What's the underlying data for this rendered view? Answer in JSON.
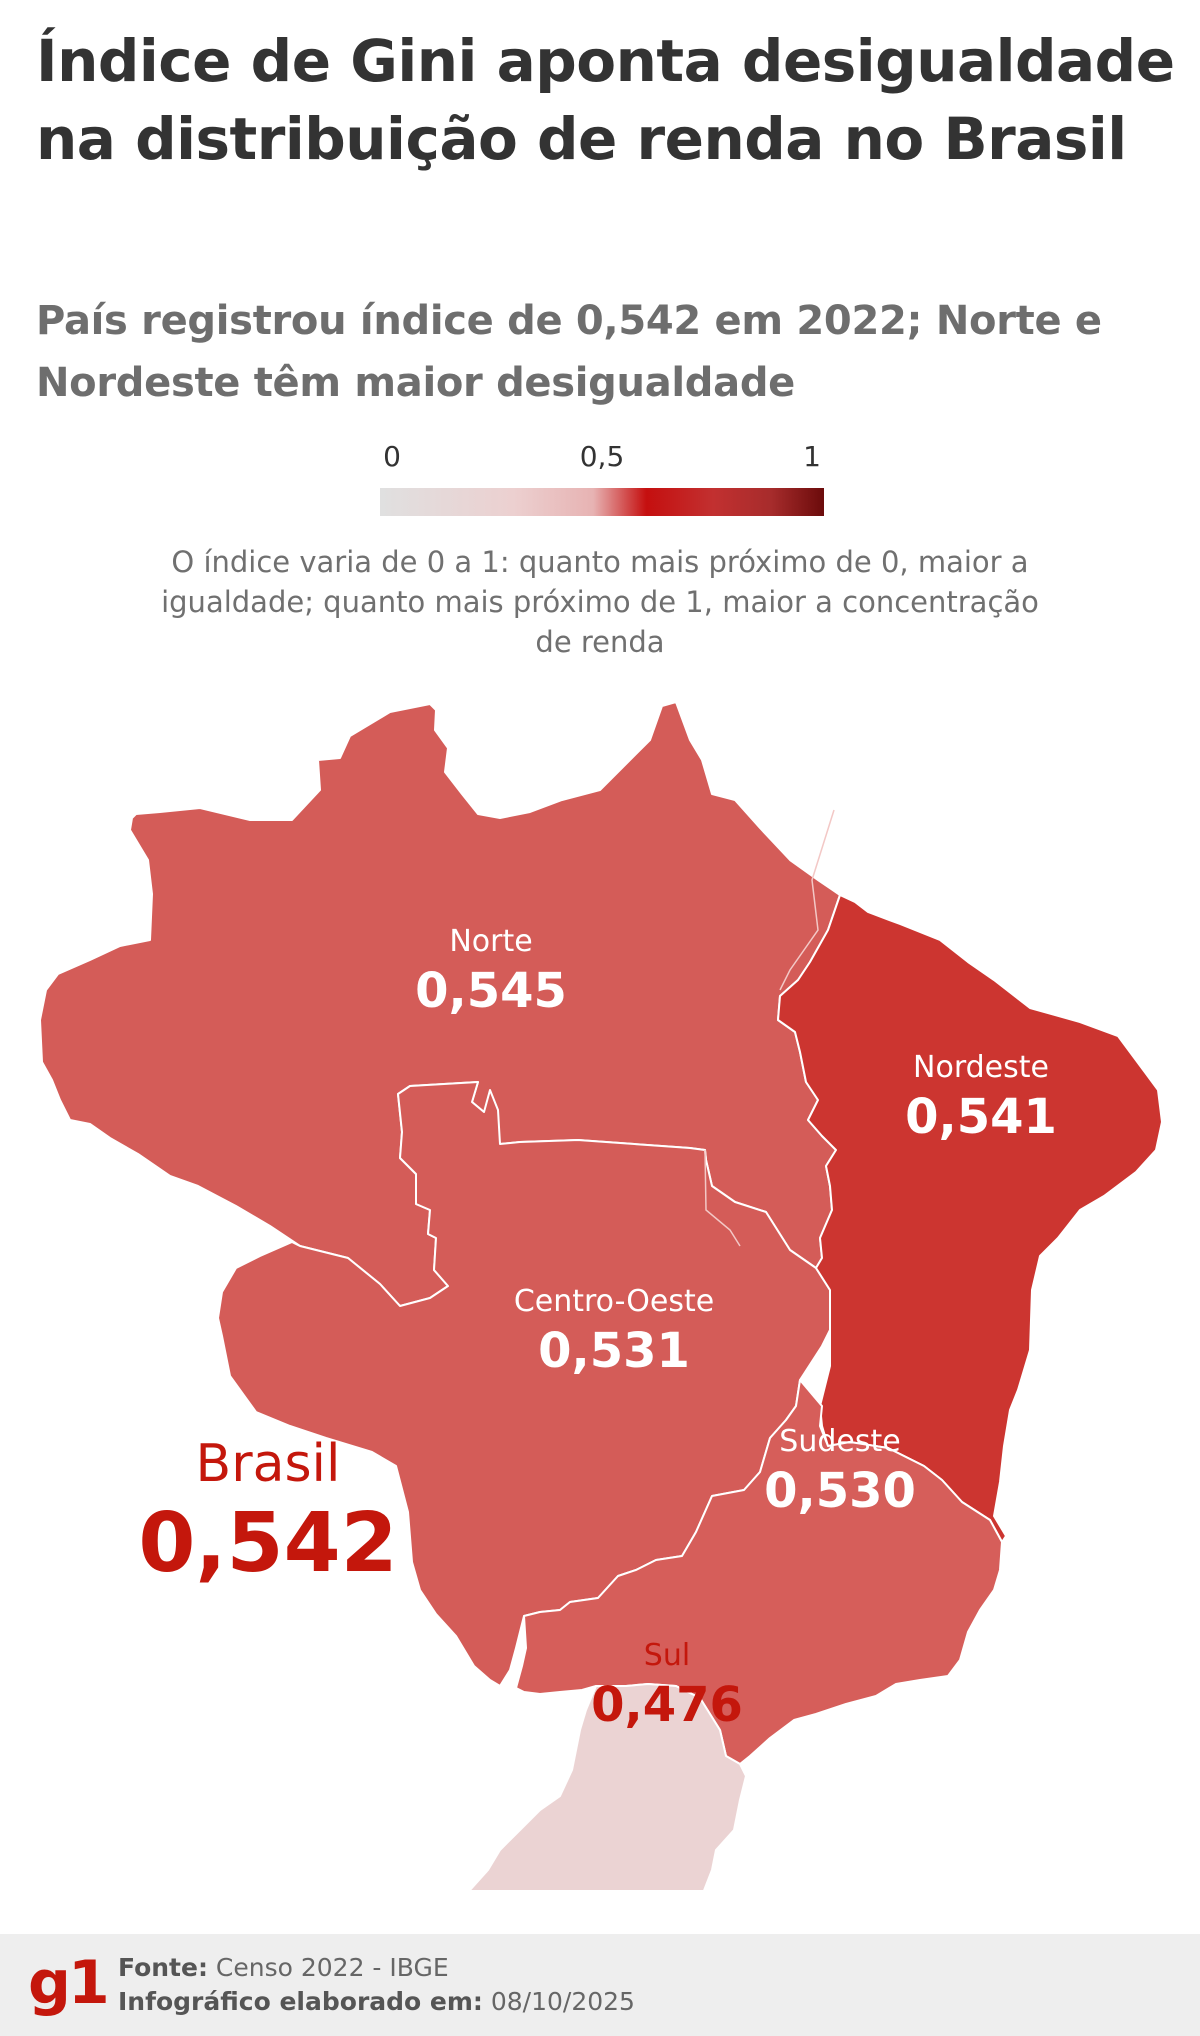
{
  "title": "Índice de Gini aponta desigualdade na distribuição de renda no Brasil",
  "subtitle": "País registrou índice de 0,542 em 2022; Norte e Nordeste têm maior desigualdade",
  "legend": {
    "ticks": [
      "0",
      "0,5",
      "1"
    ],
    "explanation": "O índice varia de 0 a 1: quanto mais próximo de 0, maior a igualdade; quanto mais próximo de 1, maior a concentração de renda"
  },
  "brasil": {
    "label": "Brasil",
    "value": "0,542"
  },
  "regions": {
    "norte": {
      "name": "Norte",
      "value": "0,545",
      "color": "#d45c58"
    },
    "nordeste": {
      "name": "Nordeste",
      "value": "0,541",
      "color": "#cc3530"
    },
    "centro_oeste": {
      "name": "Centro-Oeste",
      "value": "0,531",
      "color": "#d45c58"
    },
    "sudeste": {
      "name": "Sudeste",
      "value": "0,530",
      "color": "#d65e5a"
    },
    "sul": {
      "name": "Sul",
      "value": "0,476",
      "color": "#ebd3d3"
    }
  },
  "colors": {
    "accent": "#c4170c",
    "title": "#333333",
    "subtitle": "#6e6e6e"
  },
  "footer": {
    "logo": "g1",
    "source_label": "Fonte:",
    "source_value": "Censo 2022 - IBGE",
    "date_label": "Infográfico elaborado em:",
    "date_value": "08/10/2025"
  }
}
